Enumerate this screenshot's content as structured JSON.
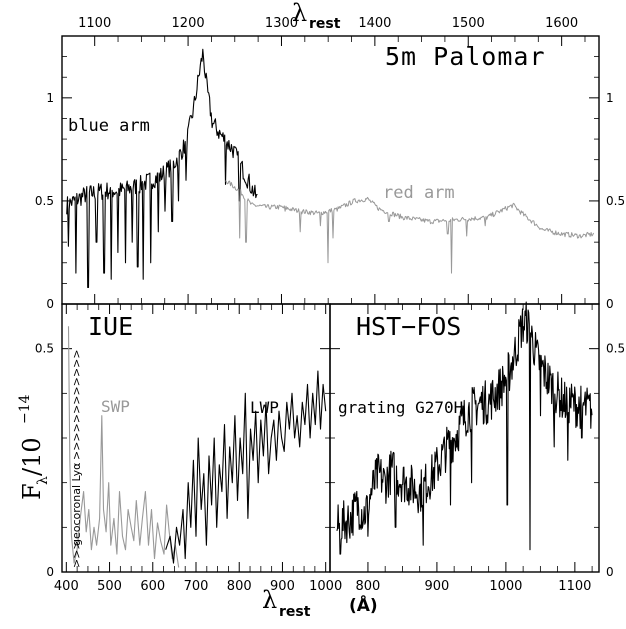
{
  "chart_data": [
    {
      "id": "palomar",
      "type": "line",
      "panel_title": "5m Palomar",
      "top_axis_label": "λ",
      "top_axis_label_sub": "rest",
      "xlim": [
        1065,
        1640
      ],
      "ylim": [
        0,
        1.3
      ],
      "x_ticks": [
        1100,
        1200,
        1300,
        1400,
        1500,
        1600
      ],
      "y_ticks": [
        0,
        0.5,
        1
      ],
      "y_tick_labels": [
        "0",
        "0.5",
        "1"
      ],
      "series": [
        {
          "name": "blue arm",
          "color": "#000000",
          "key_points": [
            [
              1070,
              0.48
            ],
            [
              1090,
              0.53
            ],
            [
              1110,
              0.55
            ],
            [
              1130,
              0.55
            ],
            [
              1150,
              0.58
            ],
            [
              1170,
              0.62
            ],
            [
              1185,
              0.68
            ],
            [
              1198,
              0.78
            ],
            [
              1206,
              0.95
            ],
            [
              1212,
              1.12
            ],
            [
              1216,
              1.22
            ],
            [
              1220,
              1.05
            ],
            [
              1226,
              0.88
            ],
            [
              1235,
              0.82
            ],
            [
              1248,
              0.75
            ],
            [
              1262,
              0.62
            ],
            [
              1275,
              0.5
            ]
          ],
          "absorptions": [
            [
              1072,
              0.28
            ],
            [
              1080,
              0.15
            ],
            [
              1093,
              0.08
            ],
            [
              1102,
              0.3
            ],
            [
              1110,
              0.15
            ],
            [
              1118,
              0.12
            ],
            [
              1125,
              0.25
            ],
            [
              1133,
              0.2
            ],
            [
              1140,
              0.3
            ],
            [
              1146,
              0.18
            ],
            [
              1152,
              0.12
            ],
            [
              1160,
              0.2
            ],
            [
              1168,
              0.35
            ],
            [
              1175,
              0.45
            ],
            [
              1183,
              0.4
            ],
            [
              1190,
              0.5
            ],
            [
              1198,
              0.6
            ],
            [
              1240,
              0.58
            ],
            [
              1255,
              0.5
            ],
            [
              1266,
              0.55
            ]
          ]
        },
        {
          "name": "red arm",
          "color": "#999999",
          "key_points": [
            [
              1240,
              0.6
            ],
            [
              1255,
              0.55
            ],
            [
              1268,
              0.48
            ],
            [
              1285,
              0.47
            ],
            [
              1300,
              0.47
            ],
            [
              1320,
              0.45
            ],
            [
              1340,
              0.44
            ],
            [
              1360,
              0.46
            ],
            [
              1378,
              0.5
            ],
            [
              1392,
              0.51
            ],
            [
              1405,
              0.46
            ],
            [
              1430,
              0.42
            ],
            [
              1460,
              0.4
            ],
            [
              1490,
              0.41
            ],
            [
              1520,
              0.42
            ],
            [
              1548,
              0.48
            ],
            [
              1560,
              0.43
            ],
            [
              1580,
              0.36
            ],
            [
              1600,
              0.34
            ],
            [
              1620,
              0.33
            ],
            [
              1635,
              0.34
            ]
          ],
          "absorptions": [
            [
              1255,
              0.32
            ],
            [
              1262,
              0.3
            ],
            [
              1304,
              0.45
            ],
            [
              1320,
              0.35
            ],
            [
              1342,
              0.38
            ],
            [
              1350,
              0.2
            ],
            [
              1355,
              0.32
            ],
            [
              1415,
              0.4
            ],
            [
              1478,
              0.34
            ],
            [
              1482,
              0.15
            ],
            [
              1498,
              0.33
            ],
            [
              1518,
              0.38
            ]
          ]
        }
      ],
      "annotations": [
        "blue arm",
        "red arm"
      ]
    },
    {
      "id": "iue",
      "type": "line",
      "panel_title": "IUE",
      "xlim": [
        390,
        1010
      ],
      "ylim": [
        0,
        0.6
      ],
      "x_ticks": [
        400,
        500,
        600,
        700,
        800,
        900,
        1000
      ],
      "y_ticks": [
        0,
        0.5
      ],
      "y_tick_labels": [
        "0",
        "0.5"
      ],
      "ylabel": "F",
      "ylabel_sub": "λ",
      "ylabel_rest": "/10",
      "ylabel_exp": "−14",
      "geocoronal_label": "geocoronal Lyα",
      "series": [
        {
          "name": "SWP",
          "color": "#999999",
          "key_points": [
            [
              405,
              0.55
            ],
            [
              408,
              0.25
            ],
            [
              412,
              0.08
            ],
            [
              418,
              0.02
            ],
            [
              425,
              0.05
            ],
            [
              432,
              0.12
            ],
            [
              440,
              0.18
            ],
            [
              446,
              0.09
            ],
            [
              452,
              0.14
            ],
            [
              458,
              0.05
            ],
            [
              464,
              0.1
            ],
            [
              470,
              0.06
            ],
            [
              477,
              0.12
            ],
            [
              482,
              0.35
            ],
            [
              486,
              0.14
            ],
            [
              492,
              0.09
            ],
            [
              498,
              0.2
            ],
            [
              503,
              0.06
            ],
            [
              510,
              0.12
            ],
            [
              517,
              0.04
            ],
            [
              523,
              0.18
            ],
            [
              530,
              0.08
            ],
            [
              537,
              0.05
            ],
            [
              543,
              0.14
            ],
            [
              550,
              0.1
            ],
            [
              556,
              0.07
            ],
            [
              562,
              0.16
            ],
            [
              570,
              0.06
            ],
            [
              576,
              0.12
            ],
            [
              583,
              0.18
            ],
            [
              590,
              0.06
            ],
            [
              597,
              0.14
            ],
            [
              604,
              0.03
            ],
            [
              611,
              0.11
            ],
            [
              618,
              0.07
            ],
            [
              626,
              0.04
            ],
            [
              632,
              0.15
            ],
            [
              638,
              0.09
            ],
            [
              645,
              0.03
            ],
            [
              652,
              0.06
            ],
            [
              660,
              0.01
            ]
          ]
        },
        {
          "name": "LWP",
          "color": "#000000",
          "key_points": [
            [
              630,
              0.05
            ],
            [
              640,
              0.08
            ],
            [
              648,
              0.02
            ],
            [
              655,
              0.1
            ],
            [
              662,
              0.06
            ],
            [
              670,
              0.14
            ],
            [
              675,
              0.03
            ],
            [
              682,
              0.2
            ],
            [
              688,
              0.1
            ],
            [
              694,
              0.25
            ],
            [
              700,
              0.08
            ],
            [
              705,
              0.3
            ],
            [
              712,
              0.14
            ],
            [
              718,
              0.22
            ],
            [
              724,
              0.06
            ],
            [
              730,
              0.26
            ],
            [
              736,
              0.15
            ],
            [
              742,
              0.3
            ],
            [
              748,
              0.1
            ],
            [
              754,
              0.24
            ],
            [
              760,
              0.18
            ],
            [
              766,
              0.33
            ],
            [
              772,
              0.12
            ],
            [
              778,
              0.28
            ],
            [
              784,
              0.2
            ],
            [
              790,
              0.35
            ],
            [
              796,
              0.16
            ],
            [
              802,
              0.3
            ],
            [
              808,
              0.22
            ],
            [
              814,
              0.4
            ],
            [
              820,
              0.12
            ],
            [
              826,
              0.32
            ],
            [
              832,
              0.25
            ],
            [
              838,
              0.36
            ],
            [
              844,
              0.2
            ],
            [
              850,
              0.34
            ],
            [
              856,
              0.26
            ],
            [
              862,
              0.38
            ],
            [
              868,
              0.22
            ],
            [
              874,
              0.3
            ],
            [
              880,
              0.34
            ],
            [
              886,
              0.25
            ],
            [
              892,
              0.36
            ],
            [
              898,
              0.3
            ],
            [
              904,
              0.27
            ],
            [
              910,
              0.38
            ],
            [
              916,
              0.32
            ],
            [
              922,
              0.4
            ],
            [
              928,
              0.3
            ],
            [
              934,
              0.35
            ],
            [
              940,
              0.28
            ],
            [
              946,
              0.38
            ],
            [
              952,
              0.33
            ],
            [
              958,
              0.42
            ],
            [
              964,
              0.3
            ],
            [
              970,
              0.4
            ],
            [
              976,
              0.33
            ],
            [
              982,
              0.45
            ],
            [
              988,
              0.32
            ],
            [
              994,
              0.42
            ],
            [
              1000,
              0.36
            ]
          ]
        }
      ],
      "annotations": [
        "SWP",
        "LWP"
      ]
    },
    {
      "id": "fos",
      "type": "line",
      "panel_title": "HST−FOS",
      "xlim": [
        745,
        1135
      ],
      "ylim": [
        0,
        0.6
      ],
      "x_ticks": [
        800,
        900,
        1000,
        1100
      ],
      "y_ticks": [
        0,
        0.5
      ],
      "y_tick_labels": [
        "0",
        "0.5"
      ],
      "series": [
        {
          "name": "grating G270H",
          "color": "#000000",
          "key_points": [
            [
              755,
              0.1
            ],
            [
              765,
              0.11
            ],
            [
              775,
              0.12
            ],
            [
              785,
              0.15
            ],
            [
              795,
              0.13
            ],
            [
              805,
              0.18
            ],
            [
              815,
              0.22
            ],
            [
              825,
              0.2
            ],
            [
              835,
              0.23
            ],
            [
              845,
              0.21
            ],
            [
              855,
              0.2
            ],
            [
              865,
              0.19
            ],
            [
              875,
              0.18
            ],
            [
              885,
              0.2
            ],
            [
              895,
              0.22
            ],
            [
              905,
              0.25
            ],
            [
              915,
              0.28
            ],
            [
              925,
              0.3
            ],
            [
              935,
              0.33
            ],
            [
              945,
              0.36
            ],
            [
              955,
              0.37
            ],
            [
              965,
              0.38
            ],
            [
              975,
              0.38
            ],
            [
              985,
              0.4
            ],
            [
              995,
              0.42
            ],
            [
              1005,
              0.45
            ],
            [
              1015,
              0.5
            ],
            [
              1023,
              0.55
            ],
            [
              1030,
              0.56
            ],
            [
              1037,
              0.53
            ],
            [
              1045,
              0.48
            ],
            [
              1055,
              0.45
            ],
            [
              1065,
              0.42
            ],
            [
              1075,
              0.4
            ],
            [
              1085,
              0.38
            ],
            [
              1095,
              0.38
            ],
            [
              1105,
              0.37
            ],
            [
              1115,
              0.37
            ],
            [
              1125,
              0.36
            ]
          ],
          "absorptions": [
            [
              760,
              0.04
            ],
            [
              800,
              0.08
            ],
            [
              840,
              0.1
            ],
            [
              880,
              0.06
            ],
            [
              920,
              0.15
            ],
            [
              950,
              0.2
            ],
            [
              1002,
              0.15
            ],
            [
              1035,
              0.05
            ],
            [
              1050,
              0.35
            ],
            [
              1070,
              0.28
            ],
            [
              1090,
              0.25
            ],
            [
              1110,
              0.3
            ]
          ]
        }
      ],
      "annotations": [
        "grating G270H"
      ]
    }
  ],
  "bottom_axis": {
    "label": "λ",
    "label_sub": "rest",
    "unit": "(Å)"
  }
}
